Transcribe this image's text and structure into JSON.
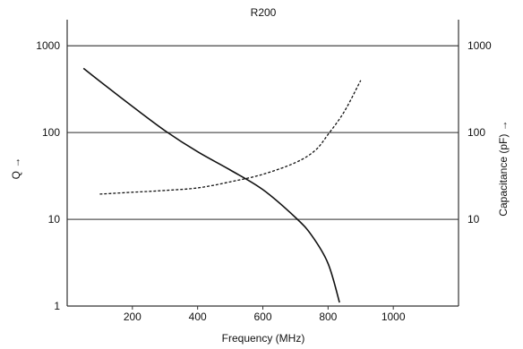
{
  "chart_data": {
    "type": "line",
    "title": "R200",
    "xlabel": "Frequency (MHz)",
    "ylabel_left": "Q →",
    "ylabel_right": "Capacitance (pF) →",
    "x_scale": "linear",
    "y_scale": "log",
    "xlim": [
      0,
      1200
    ],
    "ylim": [
      1,
      2000
    ],
    "x_ticks": [
      200,
      400,
      600,
      800,
      1000
    ],
    "y_ticks_left": [
      1,
      10,
      100,
      1000
    ],
    "y_ticks_right": [
      10,
      100,
      1000
    ],
    "grid": "horizontal",
    "series": [
      {
        "line_style": "solid",
        "axis": "left",
        "color": "#111111",
        "points": [
          [
            50,
            550
          ],
          [
            100,
            390
          ],
          [
            200,
            200
          ],
          [
            300,
            105
          ],
          [
            400,
            60
          ],
          [
            500,
            37
          ],
          [
            600,
            22
          ],
          [
            700,
            10.5
          ],
          [
            750,
            6.5
          ],
          [
            800,
            3.1
          ],
          [
            835,
            1.1
          ]
        ]
      },
      {
        "line_style": "dashed",
        "axis": "right",
        "color": "#111111",
        "points": [
          [
            100,
            19.5
          ],
          [
            200,
            20.5
          ],
          [
            300,
            21.5
          ],
          [
            400,
            23
          ],
          [
            500,
            27
          ],
          [
            600,
            33
          ],
          [
            700,
            45
          ],
          [
            760,
            62
          ],
          [
            800,
            95
          ],
          [
            850,
            175
          ],
          [
            900,
            400
          ]
        ]
      }
    ]
  }
}
